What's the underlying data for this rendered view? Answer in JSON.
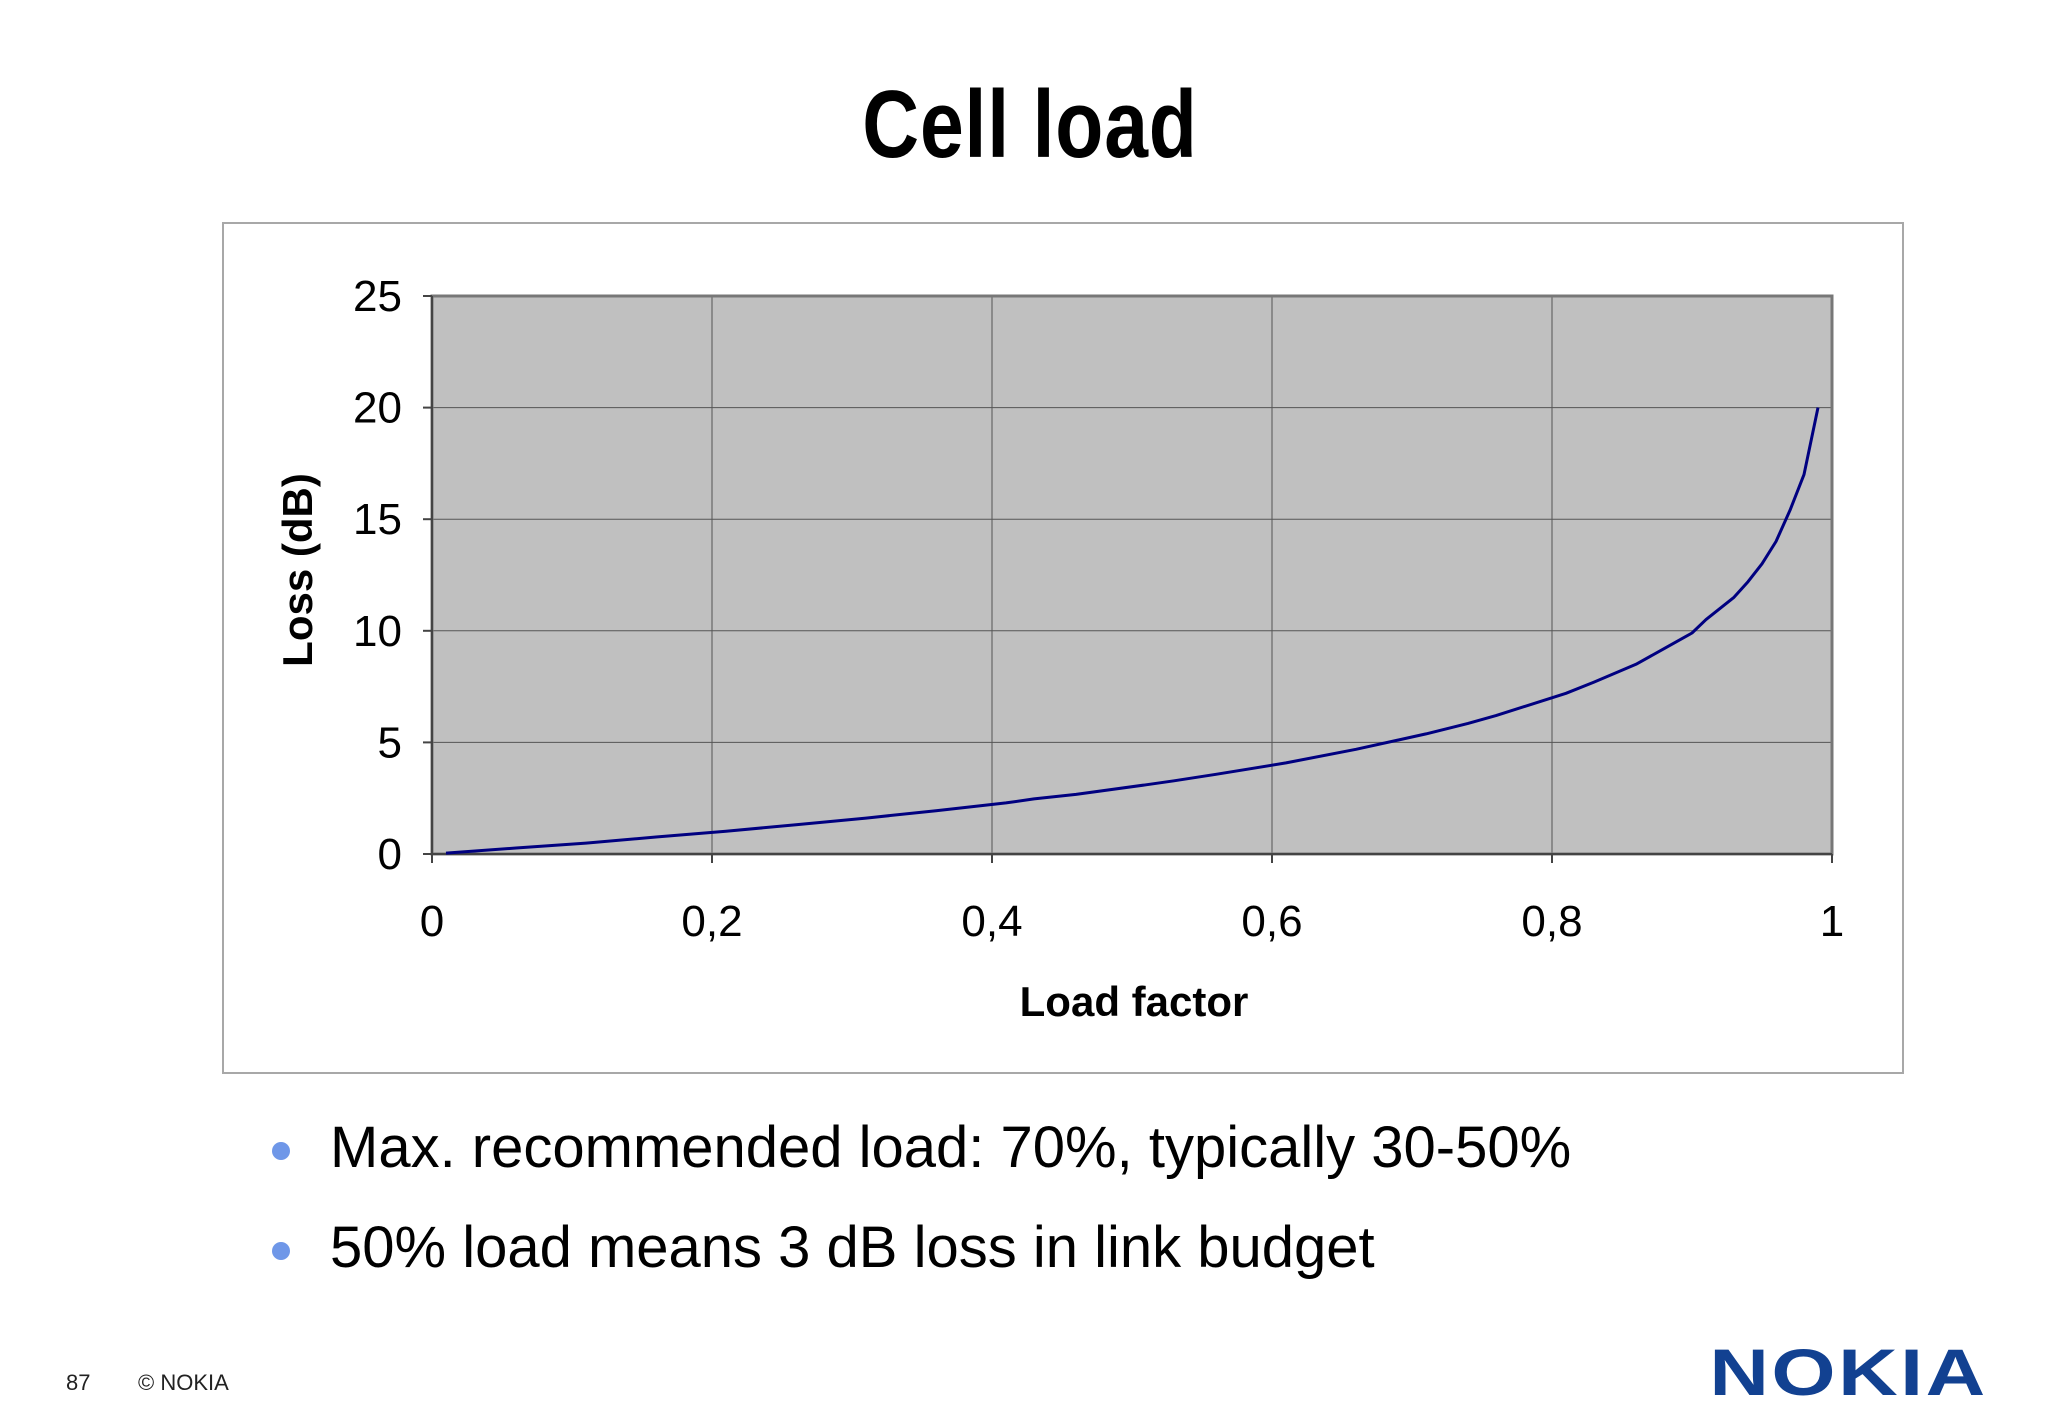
{
  "slide": {
    "title": "Cell load",
    "bullets": [
      "Max. recommended load: 70%, typically 30-50%",
      "50% load means 3 dB loss in link budget"
    ],
    "page_number": "87",
    "copyright": "© NOKIA",
    "logo_text": "NOKIA",
    "colors": {
      "logo": "#124191",
      "bullet": "#6f97e8",
      "line": "#000080",
      "plot_bg": "#c0c0c0"
    }
  },
  "chart_data": {
    "type": "line",
    "xlabel": "Load factor",
    "ylabel": "Loss (dB)",
    "xlim": [
      0,
      1
    ],
    "ylim": [
      0,
      25
    ],
    "x_ticks": [
      "0",
      "0,2",
      "0,4",
      "0,6",
      "0,8",
      "1"
    ],
    "y_ticks": [
      "0",
      "5",
      "10",
      "15",
      "20",
      "25"
    ],
    "grid": true,
    "series": [
      {
        "x": [
          0.01,
          0.06,
          0.11,
          0.16,
          0.21,
          0.26,
          0.31,
          0.36,
          0.41,
          0.43,
          0.46,
          0.51,
          0.53,
          0.56,
          0.61,
          0.66,
          0.71,
          0.74,
          0.76,
          0.81,
          0.83,
          0.86,
          0.88,
          0.9,
          0.91,
          0.93,
          0.94,
          0.95,
          0.96,
          0.97,
          0.98,
          0.99
        ],
        "y": [
          0.04,
          0.27,
          0.49,
          0.76,
          1.02,
          1.31,
          1.61,
          1.94,
          2.29,
          2.47,
          2.67,
          3.1,
          3.28,
          3.57,
          4.08,
          4.69,
          5.38,
          5.85,
          6.2,
          7.2,
          7.7,
          8.5,
          9.2,
          9.9,
          10.5,
          11.5,
          12.2,
          13.0,
          14.0,
          15.4,
          17.0,
          20.0
        ]
      }
    ]
  }
}
